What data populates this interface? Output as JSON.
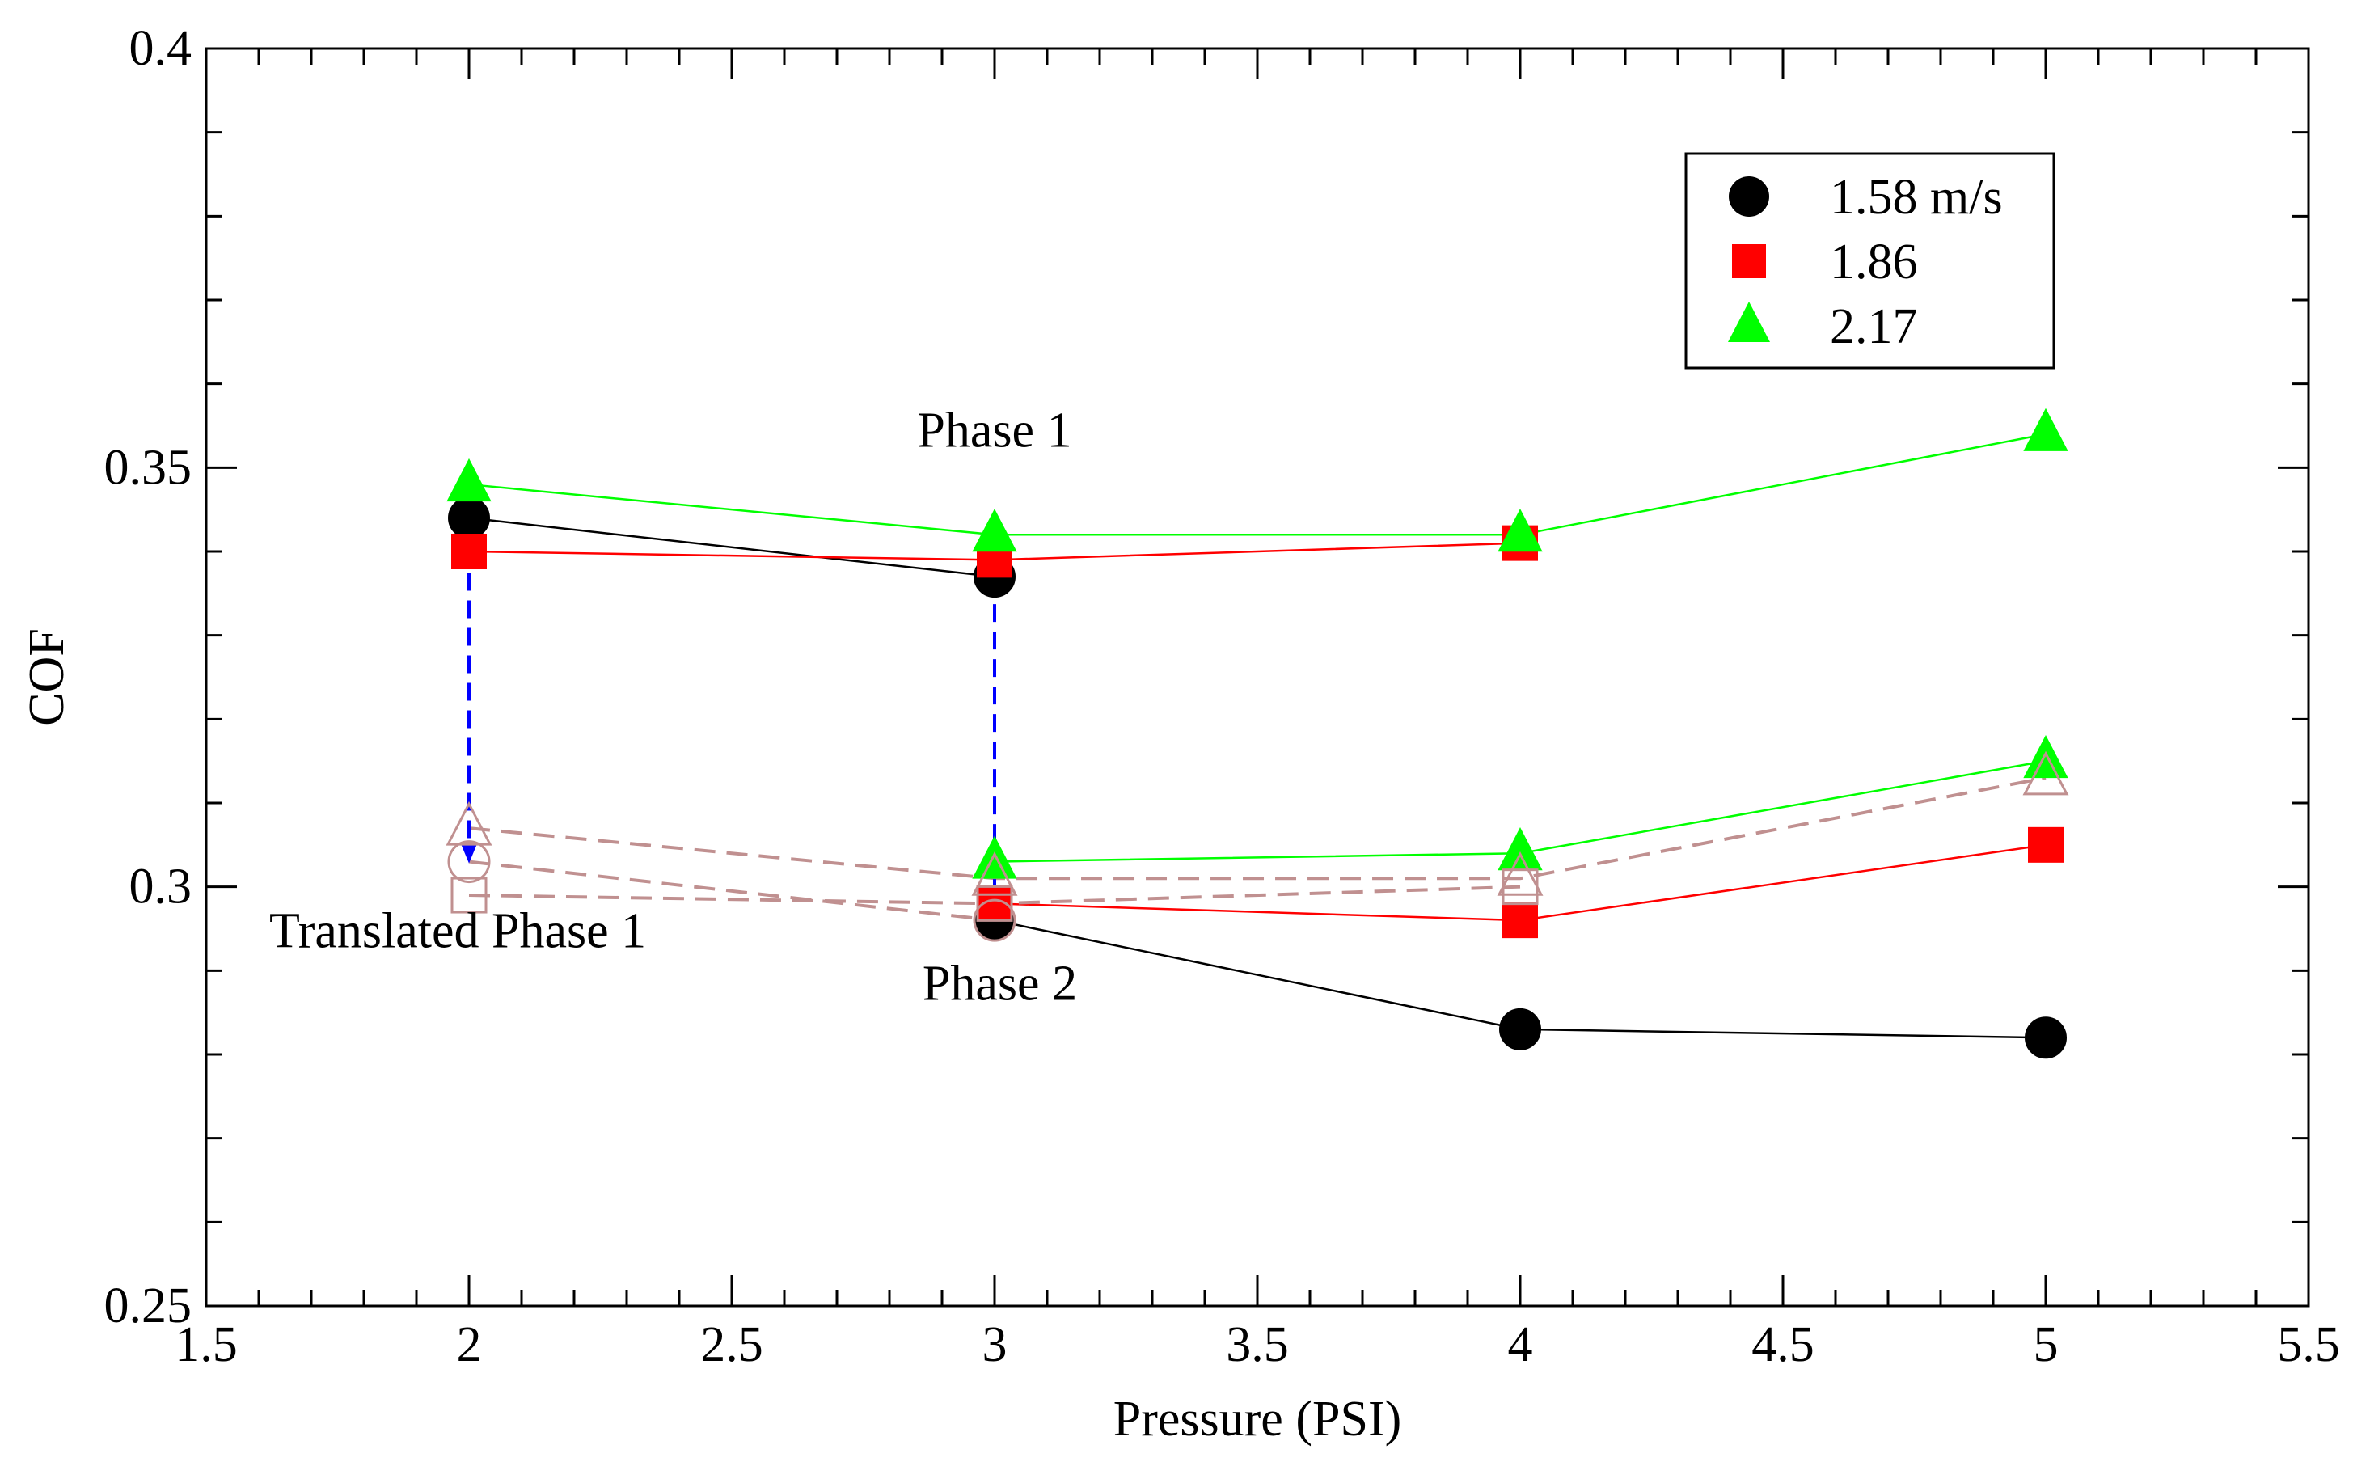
{
  "chart_data": {
    "type": "line",
    "title": "",
    "xlabel": "Pressure (PSI)",
    "ylabel": "COF",
    "xlim": [
      1.5,
      5.5
    ],
    "ylim": [
      0.25,
      0.4
    ],
    "x_ticks": [
      1.5,
      2,
      2.5,
      3,
      3.5,
      4,
      4.5,
      5,
      5.5
    ],
    "x_tick_labels": [
      "1.5",
      "2",
      "2.5",
      "3",
      "3.5",
      "4",
      "4.5",
      "5",
      "5.5"
    ],
    "y_ticks": [
      0.25,
      0.3,
      0.35,
      0.4
    ],
    "y_tick_labels": [
      "0.25",
      "0.3",
      "0.35",
      "0.4"
    ],
    "x_minor_step": 0.1,
    "y_minor_step": 0.01,
    "legend_position": "top-right",
    "series": [
      {
        "name": "1.58 m/s",
        "marker": "circle",
        "color": "#000000",
        "filled": true,
        "phase": 1,
        "x": [
          2,
          3
        ],
        "values": [
          0.344,
          0.337
        ]
      },
      {
        "name": "1.86",
        "marker": "square",
        "color": "#ff0000",
        "filled": true,
        "phase": 1,
        "x": [
          2,
          3,
          4
        ],
        "values": [
          0.34,
          0.339,
          0.341
        ]
      },
      {
        "name": "2.17",
        "marker": "triangle",
        "color": "#00ff00",
        "filled": true,
        "phase": 1,
        "x": [
          2,
          3,
          4,
          5
        ],
        "values": [
          0.348,
          0.342,
          0.342,
          0.354
        ]
      },
      {
        "name": "1.58 m/s",
        "marker": "circle",
        "color": "#000000",
        "filled": true,
        "phase": 2,
        "x": [
          3,
          4,
          5
        ],
        "values": [
          0.296,
          0.283,
          0.282
        ]
      },
      {
        "name": "1.86",
        "marker": "square",
        "color": "#ff0000",
        "filled": true,
        "phase": 2,
        "x": [
          3,
          4,
          5
        ],
        "values": [
          0.298,
          0.296,
          0.305
        ]
      },
      {
        "name": "2.17",
        "marker": "triangle",
        "color": "#00ff00",
        "filled": true,
        "phase": 2,
        "x": [
          3,
          4,
          5
        ],
        "values": [
          0.303,
          0.304,
          0.315
        ]
      },
      {
        "name": "Translated 1.58 m/s",
        "marker": "circle",
        "color": "#c09090",
        "filled": false,
        "dashed": true,
        "x": [
          2,
          3
        ],
        "values": [
          0.303,
          0.296
        ]
      },
      {
        "name": "Translated 1.86",
        "marker": "square",
        "color": "#c09090",
        "filled": false,
        "dashed": true,
        "x": [
          2,
          3,
          4
        ],
        "values": [
          0.299,
          0.298,
          0.3
        ]
      },
      {
        "name": "Translated 2.17",
        "marker": "triangle",
        "color": "#c09090",
        "filled": false,
        "dashed": true,
        "x": [
          2,
          3,
          4,
          5
        ],
        "values": [
          0.307,
          0.301,
          0.301,
          0.313
        ]
      }
    ],
    "translation_arrows": [
      {
        "x": 2,
        "from": 0.344,
        "to": 0.303,
        "color": "#0000ff"
      },
      {
        "x": 3,
        "from": 0.337,
        "to": 0.296,
        "color": "#0000ff"
      }
    ],
    "annotations": [
      {
        "text": "Phase 1",
        "x": 3,
        "y": 0.3525
      },
      {
        "text": "Phase 2",
        "x": 3.01,
        "y": 0.2865
      },
      {
        "text": "Translated Phase 1",
        "x": 1.62,
        "y": 0.2928
      }
    ],
    "legend": [
      {
        "label": "1.58 m/s",
        "marker": "circle",
        "color": "#000000"
      },
      {
        "label": "1.86",
        "marker": "square",
        "color": "#ff0000"
      },
      {
        "label": "2.17",
        "marker": "triangle",
        "color": "#00ff00"
      }
    ]
  }
}
